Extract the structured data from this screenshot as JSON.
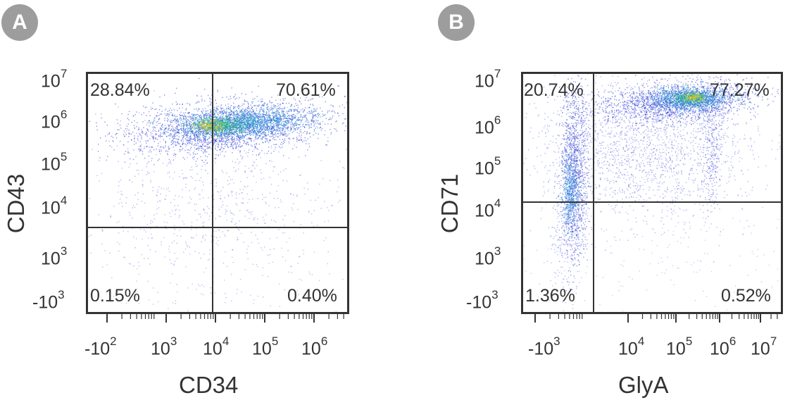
{
  "chart_data": [
    {
      "type": "scatter",
      "panel_label": "A",
      "xlabel": "CD34",
      "ylabel": "CD43",
      "x_scale": "biexponential",
      "y_scale": "biexponential",
      "x_tick_labels": [
        "-10",
        "10",
        "10",
        "10",
        "10"
      ],
      "x_tick_exponents": [
        "2",
        "3",
        "4",
        "5",
        "6"
      ],
      "y_tick_labels": [
        "10",
        "10",
        "10",
        "10",
        "10",
        "-10"
      ],
      "y_tick_exponents": [
        "7",
        "6",
        "5",
        "4",
        "3",
        "3"
      ],
      "x_gate": 6000,
      "y_gate": 3000,
      "quadrants": {
        "upper_left": "28.84%",
        "upper_right": "70.61%",
        "lower_left": "0.15%",
        "lower_right": "0.40%"
      },
      "dot_color": "#2f3bd8"
    },
    {
      "type": "scatter",
      "panel_label": "B",
      "xlabel": "GlyA",
      "ylabel": "CD71",
      "x_scale": "biexponential",
      "y_scale": "biexponential",
      "x_tick_labels": [
        "-10",
        "10",
        "10",
        "10",
        "10"
      ],
      "x_tick_exponents": [
        "3",
        "4",
        "5",
        "6",
        "7"
      ],
      "y_tick_labels": [
        "10",
        "10",
        "10",
        "10",
        "10",
        "-10"
      ],
      "y_tick_exponents": [
        "7",
        "6",
        "5",
        "4",
        "3",
        "3"
      ],
      "x_gate": 1500,
      "y_gate": 12000,
      "quadrants": {
        "upper_left": "20.74%",
        "upper_right": "77.27%",
        "lower_left": "1.36%",
        "lower_right": "0.52%"
      },
      "dot_color": "#2f3bd8"
    }
  ]
}
